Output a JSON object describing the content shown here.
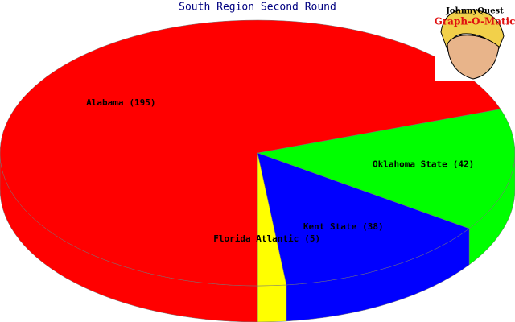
{
  "chart_data": {
    "type": "pie3d",
    "title": "South Region Second Round",
    "categories": [
      "Oklahoma State",
      "Kent State",
      "Florida Atlantic",
      "Alabama"
    ],
    "values": [
      42,
      38,
      5,
      195
    ],
    "value_labels": [
      "(42)",
      "(38)",
      "(5)",
      "(195)"
    ],
    "colors": [
      "#00ff00",
      "#0000ff",
      "#ffff00",
      "#ff0000"
    ]
  },
  "logo": {
    "line1": "JohnnyQuest",
    "line2": "Graph-O-Matic"
  }
}
